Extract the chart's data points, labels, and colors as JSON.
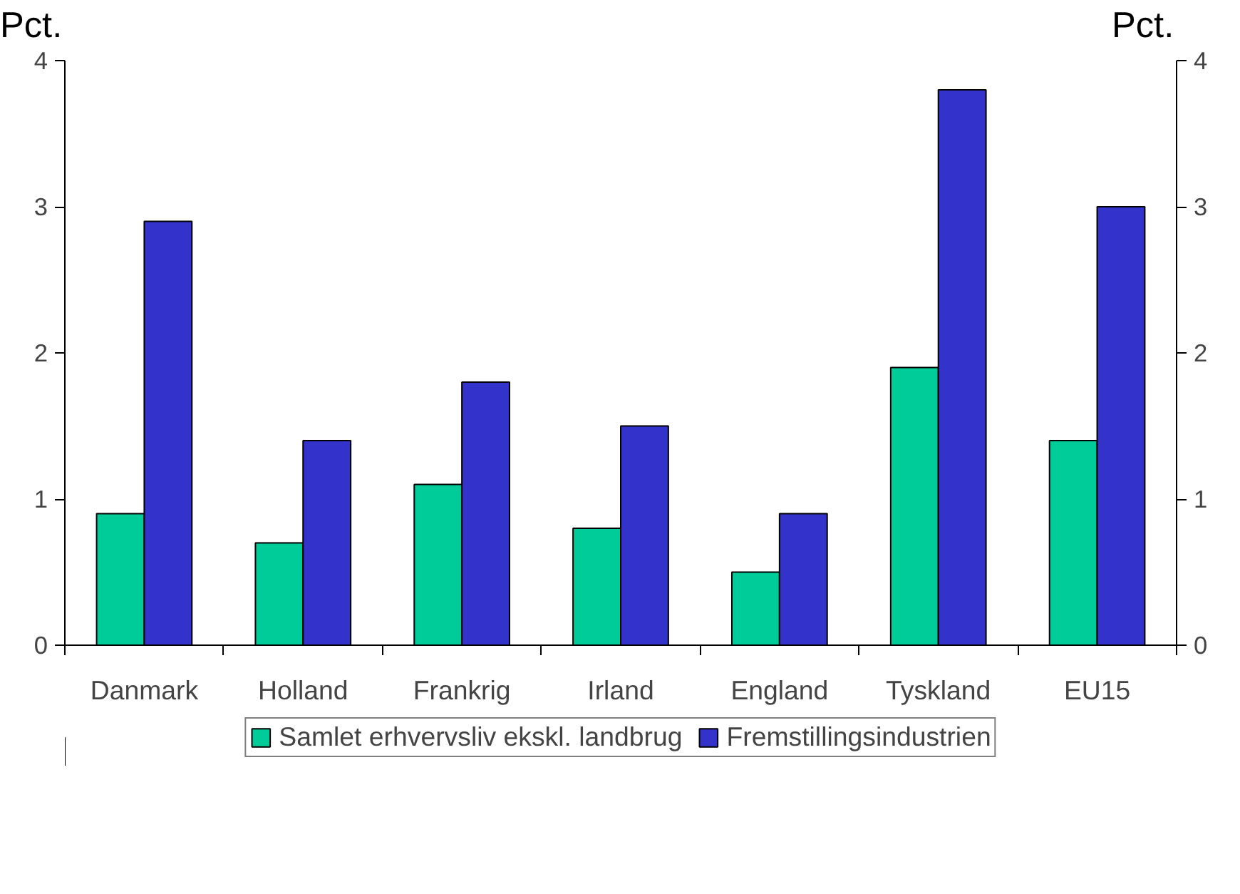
{
  "chart_data": {
    "type": "bar",
    "categories": [
      "Danmark",
      "Holland",
      "Frankrig",
      "Irland",
      "England",
      "Tyskland",
      "EU15"
    ],
    "series": [
      {
        "name": "Samlet erhvervsliv ekskl. landbrug",
        "color": "#00cc99",
        "values": [
          0.9,
          0.7,
          1.1,
          0.8,
          0.5,
          1.9,
          1.4
        ]
      },
      {
        "name": "Fremstillingsindustrien",
        "color": "#3333cc",
        "values": [
          2.9,
          1.4,
          1.8,
          1.5,
          0.9,
          3.8,
          3.0
        ]
      }
    ],
    "ylabel": "Pct.",
    "y2label": "Pct.",
    "ylim": [
      0,
      4
    ],
    "yticks": [
      0,
      1,
      2,
      3,
      4
    ],
    "y2lim": [
      0,
      4
    ],
    "y2ticks": [
      0,
      1,
      2,
      3,
      4
    ],
    "legend": "bottom",
    "grid": false
  }
}
